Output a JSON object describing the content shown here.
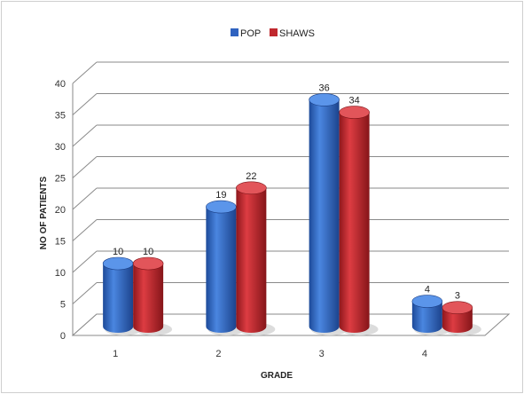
{
  "chart_data": {
    "type": "bar",
    "categories": [
      "1",
      "2",
      "3",
      "4"
    ],
    "series": [
      {
        "name": "POP",
        "values": [
          10,
          19,
          36,
          4
        ],
        "color": "#2f63c0"
      },
      {
        "name": "SHAWS",
        "values": [
          10,
          22,
          34,
          3
        ],
        "color": "#c0282e"
      }
    ],
    "xlabel": "GRADE",
    "ylabel": "NO OF PATIENTS",
    "ylim": [
      0,
      40
    ],
    "yticks": [
      "0",
      "5",
      "10",
      "15",
      "20",
      "25",
      "30",
      "35",
      "40"
    ],
    "grid": true,
    "legend_position": "top",
    "style": "3d-cylinder"
  }
}
